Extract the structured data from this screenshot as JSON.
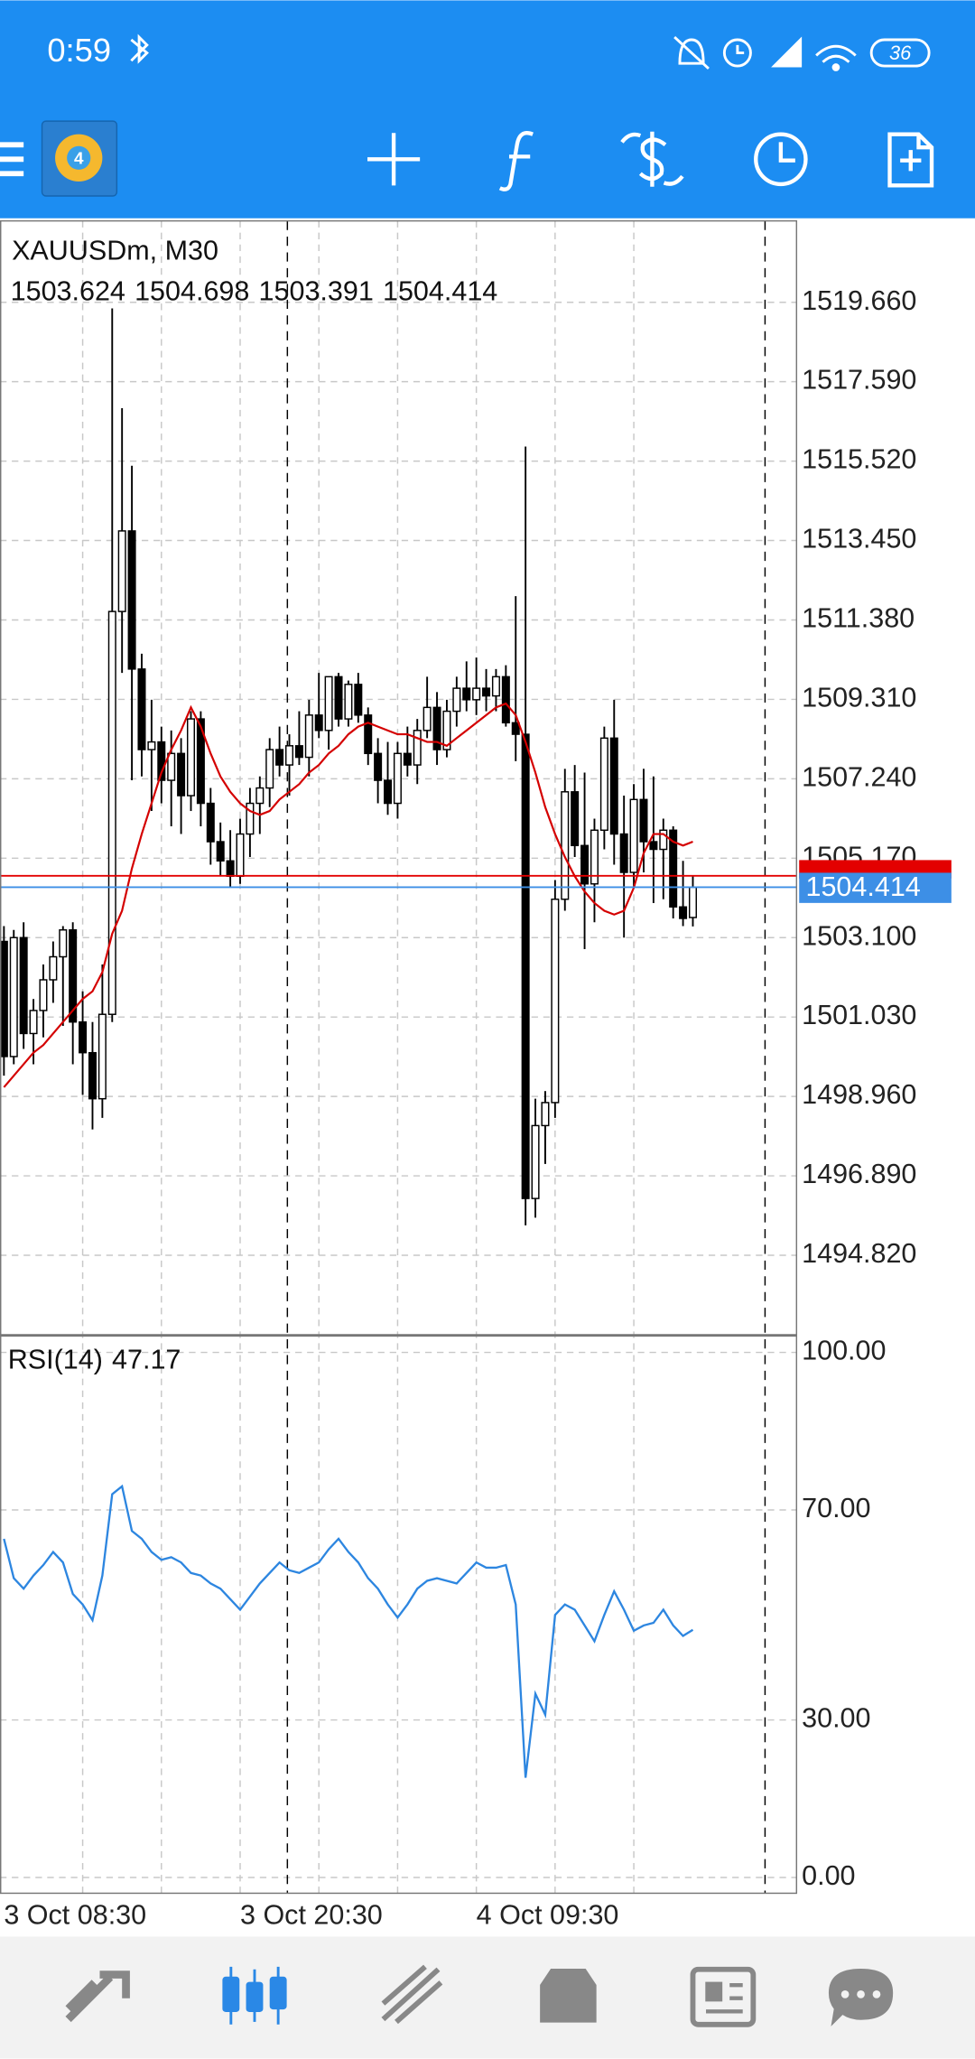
{
  "status_bar": {
    "time": "0:59",
    "battery": "36"
  },
  "chart_data": [
    {
      "type": "candlestick",
      "title": "XAUUSDm, M30",
      "categories": [
        "3 Oct 08:30",
        null,
        null,
        null,
        null,
        null,
        null,
        null,
        null,
        null,
        null,
        null,
        null,
        null,
        null,
        null,
        null,
        null,
        null,
        null,
        null,
        null,
        null,
        null,
        "3 Oct 20:30",
        null,
        null,
        null,
        null,
        null,
        null,
        null,
        null,
        null,
        null,
        null,
        null,
        null,
        null,
        null,
        null,
        null,
        null,
        null,
        null,
        null,
        null,
        null,
        "4 Oct 09:30",
        null,
        null,
        null,
        null,
        null,
        null,
        null,
        null,
        null,
        null,
        null,
        null,
        null,
        null,
        null,
        null,
        null,
        null,
        null,
        null,
        null,
        null
      ],
      "open": [
        1503.0,
        1500.0,
        1503.1,
        1500.6,
        1501.2,
        1502.0,
        1502.6,
        1503.3,
        1500.9,
        1500.1,
        1498.9,
        1501.1,
        1511.6,
        1513.7,
        1510.1,
        1508.0,
        1508.2,
        1507.2,
        1507.9,
        1506.8,
        1508.8,
        1506.6,
        1505.6,
        1505.1,
        1504.7,
        1505.8,
        1506.6,
        1507.0,
        1508.0,
        1507.6,
        1508.1,
        1507.8,
        1508.9,
        1508.5,
        1509.9,
        1508.8,
        1509.7,
        1508.9,
        1507.9,
        1507.2,
        1506.6,
        1507.9,
        1507.6,
        1508.5,
        1509.1,
        1508.0,
        1509.0,
        1509.6,
        1509.3,
        1509.6,
        1509.4,
        1509.9,
        1508.7,
        1508.4,
        1496.3,
        1498.2,
        1498.8,
        1504.1,
        1506.9,
        1505.5,
        1504.5,
        1505.9,
        1508.3,
        1505.8,
        1504.8,
        1506.7,
        1505.6,
        1505.4,
        1505.9,
        1503.9,
        1503.624
      ],
      "high": [
        1503.4,
        1503.3,
        1503.5,
        1501.5,
        1502.4,
        1503.0,
        1503.4,
        1503.5,
        1501.7,
        1500.9,
        1502.4,
        1519.5,
        1516.9,
        1515.4,
        1510.5,
        1509.3,
        1508.6,
        1508.5,
        1508.3,
        1509.0,
        1509.0,
        1507.0,
        1506.1,
        1505.9,
        1506.2,
        1507.0,
        1507.3,
        1508.3,
        1508.6,
        1508.4,
        1509.0,
        1509.3,
        1510.0,
        1509.9,
        1510.0,
        1509.8,
        1510.0,
        1509.1,
        1508.3,
        1508.2,
        1508.2,
        1508.6,
        1508.8,
        1509.9,
        1509.5,
        1509.3,
        1509.9,
        1510.3,
        1510.4,
        1510.1,
        1510.1,
        1510.2,
        1512.0,
        1515.9,
        1498.9,
        1499.1,
        1504.6,
        1507.5,
        1507.6,
        1507.4,
        1506.2,
        1508.6,
        1509.3,
        1506.8,
        1507.1,
        1507.5,
        1507.3,
        1506.2,
        1506.0,
        1505.1,
        1504.698
      ],
      "low": [
        1499.5,
        1499.8,
        1500.2,
        1499.8,
        1500.5,
        1501.4,
        1500.8,
        1499.8,
        1499.0,
        1498.1,
        1498.4,
        1500.9,
        1510.0,
        1507.2,
        1507.3,
        1506.4,
        1506.6,
        1506.0,
        1505.8,
        1506.4,
        1506.0,
        1505.0,
        1504.7,
        1504.4,
        1504.5,
        1505.2,
        1505.8,
        1506.5,
        1507.3,
        1506.8,
        1507.6,
        1507.3,
        1508.3,
        1508.0,
        1508.6,
        1508.6,
        1508.7,
        1507.6,
        1506.6,
        1506.3,
        1506.2,
        1507.3,
        1507.1,
        1508.3,
        1507.6,
        1507.8,
        1508.6,
        1509.0,
        1508.9,
        1509.0,
        1509.0,
        1508.6,
        1507.7,
        1495.6,
        1495.8,
        1497.2,
        1498.4,
        1503.8,
        1505.2,
        1502.8,
        1503.5,
        1505.4,
        1505.0,
        1503.1,
        1504.4,
        1504.8,
        1504.0,
        1504.1,
        1503.6,
        1503.4,
        1503.391
      ],
      "close": [
        1500.0,
        1503.1,
        1500.6,
        1501.2,
        1502.0,
        1502.6,
        1503.3,
        1500.9,
        1500.1,
        1498.9,
        1501.1,
        1511.6,
        1513.7,
        1510.1,
        1508.0,
        1508.2,
        1507.2,
        1507.9,
        1506.8,
        1508.8,
        1506.6,
        1505.6,
        1505.1,
        1504.7,
        1505.8,
        1506.6,
        1507.0,
        1508.0,
        1507.6,
        1508.1,
        1507.8,
        1508.9,
        1508.5,
        1509.9,
        1508.8,
        1509.7,
        1508.9,
        1507.9,
        1507.2,
        1506.6,
        1507.9,
        1507.6,
        1508.5,
        1509.1,
        1508.0,
        1509.0,
        1509.6,
        1509.3,
        1509.6,
        1509.4,
        1509.9,
        1508.7,
        1508.4,
        1496.3,
        1498.2,
        1498.8,
        1504.1,
        1506.9,
        1505.5,
        1504.5,
        1505.9,
        1508.3,
        1505.8,
        1504.8,
        1506.7,
        1505.6,
        1505.4,
        1505.9,
        1503.9,
        1503.6,
        1504.414
      ],
      "ma": {
        "color": "#d40000",
        "values": [
          1499.2,
          1499.5,
          1499.8,
          1500.1,
          1500.3,
          1500.6,
          1500.9,
          1501.2,
          1501.5,
          1501.7,
          1502.2,
          1503.2,
          1503.8,
          1504.9,
          1505.8,
          1506.6,
          1507.4,
          1508.0,
          1508.5,
          1509.1,
          1508.6,
          1507.9,
          1507.3,
          1506.9,
          1506.6,
          1506.4,
          1506.3,
          1506.4,
          1506.7,
          1506.9,
          1507.1,
          1507.4,
          1507.6,
          1507.9,
          1508.1,
          1508.4,
          1508.6,
          1508.7,
          1508.6,
          1508.5,
          1508.4,
          1508.4,
          1508.3,
          1508.2,
          1508.2,
          1508.1,
          1508.3,
          1508.5,
          1508.7,
          1508.9,
          1509.1,
          1509.2,
          1508.9,
          1508.2,
          1507.4,
          1506.5,
          1505.8,
          1505.2,
          1504.7,
          1504.3,
          1504.0,
          1503.8,
          1503.7,
          1503.8,
          1504.4,
          1505.3,
          1505.8,
          1505.8,
          1505.6,
          1505.5,
          1505.6
        ]
      },
      "candle_color": "#000000",
      "bid_color": "#3d8fe6",
      "ask_color": "#e30000",
      "ask_line": 1504.71,
      "grid": true,
      "ylim": [
        1492.767,
        1521.781
      ],
      "yticks": [
        {
          "value": 1519.66,
          "label": "1519.660"
        },
        {
          "value": 1517.59,
          "label": "1517.590"
        },
        {
          "value": 1515.52,
          "label": "1515.520"
        },
        {
          "value": 1513.45,
          "label": "1513.450"
        },
        {
          "value": 1511.38,
          "label": "1511.380"
        },
        {
          "value": 1509.31,
          "label": "1509.310"
        },
        {
          "value": 1507.24,
          "label": "1507.240"
        },
        {
          "value": 1505.17,
          "label": "1505.170"
        },
        {
          "value": 1503.1,
          "label": "1503.100"
        },
        {
          "value": 1501.03,
          "label": "1501.030"
        },
        {
          "value": 1498.96,
          "label": "1498.960"
        },
        {
          "value": 1496.89,
          "label": "1496.890"
        },
        {
          "value": 1494.82,
          "label": "1494.820"
        }
      ]
    },
    {
      "type": "line",
      "label": "RSI(14)",
      "color": "#2d86e0",
      "values": [
        64.5,
        57,
        55,
        57.5,
        59.5,
        62,
        60,
        54,
        52,
        49,
        57.5,
        73,
        74.5,
        66,
        64.5,
        62,
        60.5,
        61,
        60,
        58,
        57.5,
        56,
        55,
        53,
        51,
        53.5,
        56,
        58,
        60,
        58.5,
        58,
        59,
        60,
        62.5,
        64.5,
        62,
        60,
        57,
        55,
        52,
        49.5,
        52,
        55,
        56.5,
        57,
        56.5,
        56,
        58,
        60,
        59,
        59,
        59.5,
        52,
        19,
        35,
        31,
        50,
        52,
        51,
        48,
        45,
        50,
        54.5,
        51,
        47,
        48,
        48.5,
        51,
        48,
        46,
        47.17
      ],
      "ylim": [
        -3,
        103
      ],
      "yticks": [
        {
          "value": 100,
          "label": "100.00"
        },
        {
          "value": 70,
          "label": "70.00"
        },
        {
          "value": 30,
          "label": "30.00"
        },
        {
          "value": 0,
          "label": "0.00"
        }
      ]
    }
  ]
}
